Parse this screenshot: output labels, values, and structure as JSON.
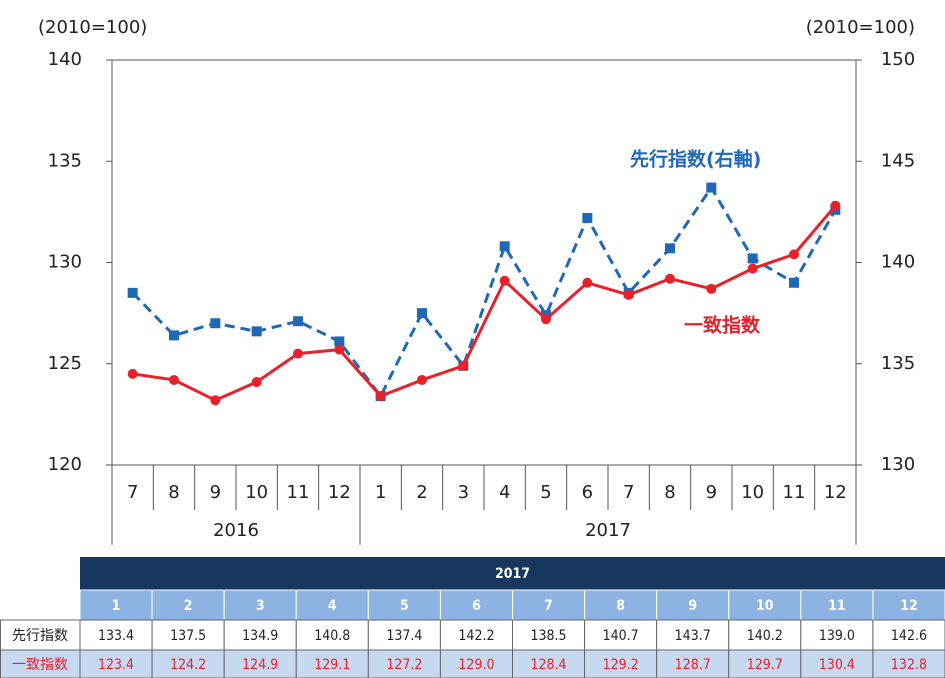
{
  "chart_data": {
    "type": "line",
    "y_unit_label": "(2010=100)",
    "y2_unit_label": "(2010=100)",
    "categories": [
      "7",
      "8",
      "9",
      "10",
      "11",
      "12",
      "1",
      "2",
      "3",
      "4",
      "5",
      "6",
      "7",
      "8",
      "9",
      "10",
      "11",
      "12"
    ],
    "periods": [
      {
        "label": "2016",
        "count": 6
      },
      {
        "label": "2017",
        "count": 12
      }
    ],
    "ylim": [
      120,
      140
    ],
    "yticks": [
      120,
      125,
      130,
      135,
      140
    ],
    "y2lim": [
      130,
      150
    ],
    "y2ticks": [
      130,
      135,
      140,
      145,
      150
    ],
    "series": [
      {
        "name": "先行指数(右軸)",
        "color": "#1f68b5",
        "axis": "y2",
        "dashed": true,
        "marker": "square",
        "values": [
          138.5,
          136.4,
          137.0,
          136.6,
          137.1,
          136.1,
          133.4,
          137.5,
          134.9,
          140.8,
          137.4,
          142.2,
          138.5,
          140.7,
          143.7,
          140.2,
          139.0,
          142.6
        ]
      },
      {
        "name": "一致指数",
        "color": "#e8202a",
        "axis": "y",
        "dashed": false,
        "marker": "circle",
        "values": [
          124.5,
          124.2,
          123.2,
          124.1,
          125.5,
          125.7,
          123.4,
          124.2,
          124.9,
          129.1,
          127.2,
          129.0,
          128.4,
          129.2,
          128.7,
          129.7,
          130.4,
          132.8
        ]
      }
    ]
  },
  "table": {
    "year": "2017",
    "months": [
      "1",
      "2",
      "3",
      "4",
      "5",
      "6",
      "7",
      "8",
      "9",
      "10",
      "11",
      "12"
    ],
    "rows": [
      {
        "label": "先行指数",
        "cells": [
          "133.4",
          "137.5",
          "134.9",
          "140.8",
          "137.4",
          "142.2",
          "138.5",
          "140.7",
          "143.7",
          "140.2",
          "139.0",
          "142.6"
        ]
      },
      {
        "label": "一致指数",
        "cells": [
          "123.4",
          "124.2",
          "124.9",
          "129.1",
          "127.2",
          "129.0",
          "128.4",
          "129.2",
          "128.7",
          "129.7",
          "130.4",
          "132.8"
        ]
      }
    ]
  }
}
